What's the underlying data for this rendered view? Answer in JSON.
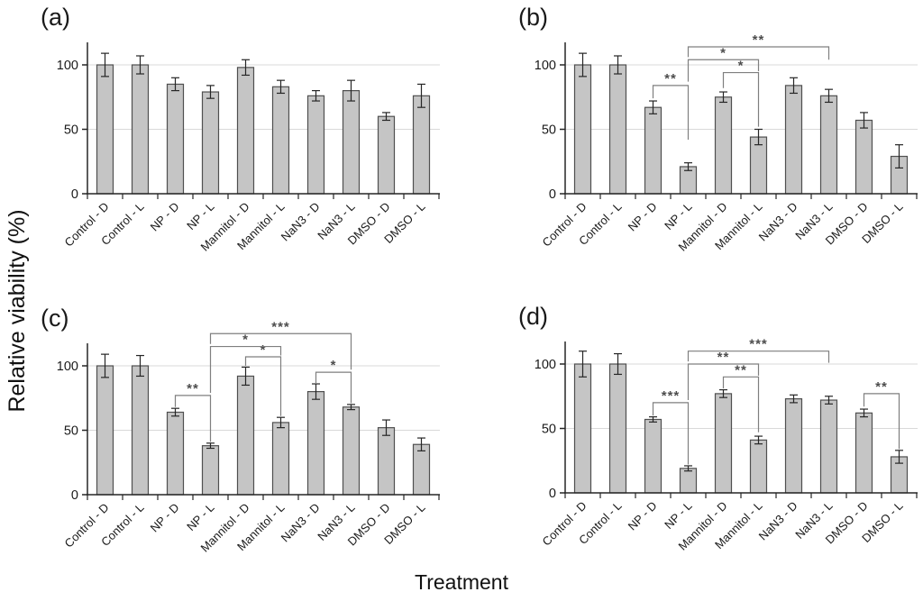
{
  "figure": {
    "ylabel": "Relative viability (%)",
    "xlabel": "Treatment"
  },
  "colors": {
    "bar_fill": "#c5c5c5",
    "bar_stroke": "#4f4f4f",
    "grid": "#d9d9d9",
    "axis": "#262626",
    "error": "#262626",
    "bracket": "#7f7f7f",
    "sig": "#4d4d4d",
    "text": "#1a1a1a"
  },
  "chart_data": {
    "type": "bar",
    "title": "",
    "xlabel": "Treatment",
    "ylabel": "Relative viability (%)",
    "categories": [
      "Control - D",
      "Control - L",
      "NP - D",
      "NP - L",
      "Mannitol - D",
      "Mannitol - L",
      "NaN3 - D",
      "NaN3 - L",
      "DMSO - D",
      "DMSO - L"
    ],
    "yticks": [
      0,
      50,
      100
    ],
    "ylim": [
      0,
      118
    ],
    "grid": "horizontal",
    "panels": [
      {
        "label": "(a)",
        "values": [
          100,
          100,
          85,
          79,
          98,
          83,
          76,
          80,
          60,
          76
        ],
        "errors": [
          9,
          7,
          5,
          5,
          6,
          5,
          4,
          8,
          3,
          9
        ],
        "significance": []
      },
      {
        "label": "(b)",
        "values": [
          100,
          100,
          67,
          21,
          75,
          44,
          84,
          76,
          57,
          29
        ],
        "errors": [
          9,
          7,
          5,
          3,
          4,
          6,
          6,
          5,
          6,
          9
        ],
        "significance": [
          {
            "pair": [
              2,
              3
            ],
            "stars": "**",
            "y": 84,
            "drop1": 10,
            "drop2": 42
          },
          {
            "pair": [
              4,
              5
            ],
            "stars": "*",
            "y": 94,
            "drop1": 12,
            "drop2": 42
          },
          {
            "pair": [
              3,
              5
            ],
            "stars": "*",
            "y": 104,
            "drop1": 17,
            "drop2": 9
          },
          {
            "pair": [
              3,
              7
            ],
            "stars": "**",
            "y": 114,
            "drop1": 8,
            "drop2": 10
          }
        ]
      },
      {
        "label": "(c)",
        "values": [
          100,
          100,
          64,
          38,
          92,
          56,
          80,
          68,
          52,
          39
        ],
        "errors": [
          9,
          8,
          3,
          2,
          7,
          4,
          6,
          2,
          6,
          5
        ],
        "significance": [
          {
            "pair": [
              2,
              3
            ],
            "stars": "**",
            "y": 77,
            "drop1": 9,
            "drop2": 36
          },
          {
            "pair": [
              4,
              5
            ],
            "stars": "*",
            "y": 107,
            "drop1": 7,
            "drop2": 46
          },
          {
            "pair": [
              3,
              5
            ],
            "stars": "*",
            "y": 115,
            "drop1": 36,
            "drop2": 7
          },
          {
            "pair": [
              3,
              7
            ],
            "stars": "***",
            "y": 125,
            "drop1": 8,
            "drop2": 28
          },
          {
            "pair": [
              6,
              7
            ],
            "stars": "*",
            "y": 95,
            "drop1": 9,
            "drop2": 24
          }
        ]
      },
      {
        "label": "(d)",
        "values": [
          100,
          100,
          57,
          19,
          77,
          41,
          73,
          72,
          62,
          28
        ],
        "errors": [
          10,
          8,
          2,
          2,
          3,
          3,
          3,
          3,
          3,
          5
        ],
        "significance": [
          {
            "pair": [
              2,
              3
            ],
            "stars": "***",
            "y": 70,
            "drop1": 10,
            "drop2": 48
          },
          {
            "pair": [
              4,
              5
            ],
            "stars": "**",
            "y": 90,
            "drop1": 9,
            "drop2": 43
          },
          {
            "pair": [
              3,
              5
            ],
            "stars": "**",
            "y": 100,
            "drop1": 28,
            "drop2": 9
          },
          {
            "pair": [
              3,
              7
            ],
            "stars": "***",
            "y": 110,
            "drop1": 8,
            "drop2": 9
          },
          {
            "pair": [
              8,
              9
            ],
            "stars": "**",
            "y": 77,
            "drop1": 10,
            "drop2": 43
          }
        ]
      }
    ]
  }
}
